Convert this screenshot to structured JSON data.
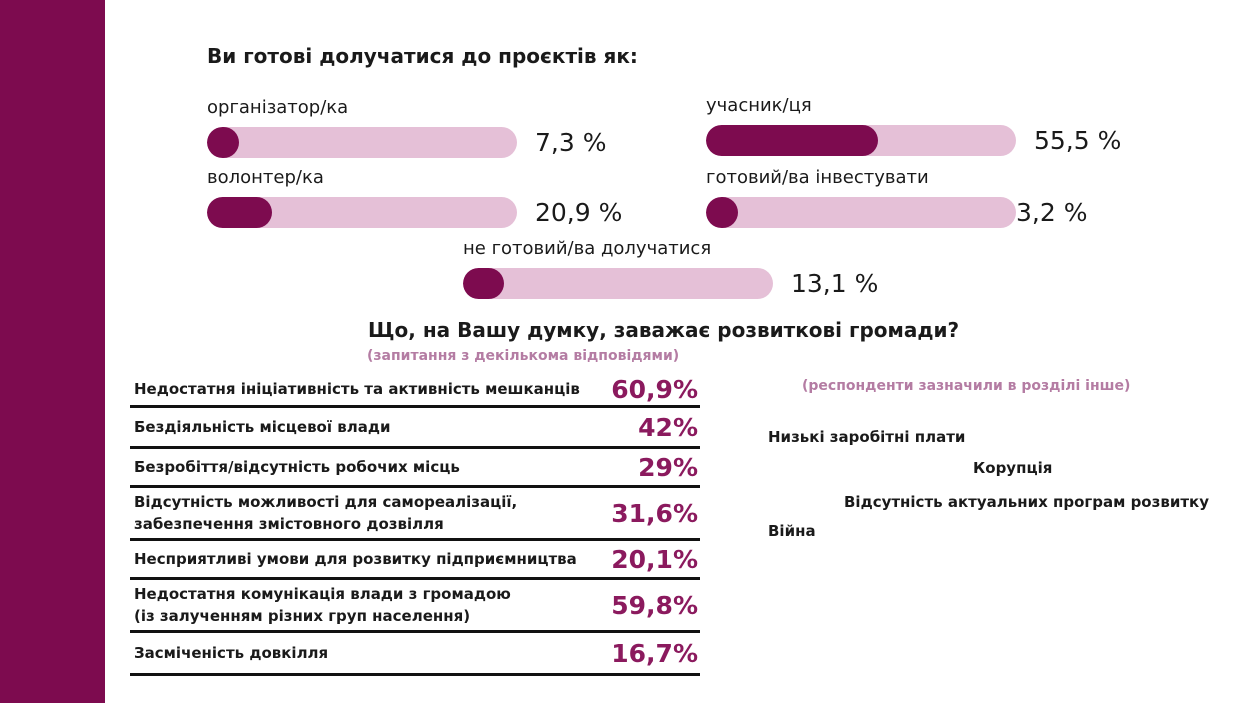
{
  "chart_data": [
    {
      "type": "bar",
      "title": "Ви готові долучатися до проєктів як:",
      "categories": [
        "організатор/ка",
        "учасник/ця",
        "волонтер/ка",
        "готовий/ва інвестувати",
        "не готовий/ва долучатися"
      ],
      "values": [
        7.3,
        55.5,
        20.9,
        3.2,
        13.1
      ],
      "value_labels": [
        "7,3 %",
        "55,5 %",
        "20,9 %",
        "3,2 %",
        "13,1 %"
      ],
      "ylim": [
        0,
        100
      ],
      "colors": {
        "fill": "#7d0b4f",
        "track": "#e5c0d7"
      }
    },
    {
      "type": "table",
      "title": "Що, на Вашу думку, заважає розвиткові громади?",
      "subtitle": "(запитання з декількома відповідями)",
      "rows": [
        {
          "label": "Недостатня ініціативність та активність мешканців",
          "value": "60,9%"
        },
        {
          "label": "Бездіяльність місцевої влади",
          "value": "42%"
        },
        {
          "label": "Безробіття/відсутність робочих місць",
          "value": "29%"
        },
        {
          "label": "Відсутність можливості для самореалізації,\nзабезпечення змістовного дозвілля",
          "value": "31,6%"
        },
        {
          "label": "Несприятливі умови для розвитку підприємництва",
          "value": "20,1%"
        },
        {
          "label": "Недостатня комунікація влади з громадою\n (із залученням різних груп населення)",
          "value": "59,8%"
        },
        {
          "label": "Засміченість довкілля",
          "value": "16,7%"
        }
      ]
    }
  ],
  "other_section": {
    "note": "(респонденти зазначили в розділі інше)",
    "items": [
      "Низькі заробітні плати",
      "Корупція",
      "Відсутність актуальних програм розвитку",
      "Війна"
    ]
  },
  "colors": {
    "accent": "#7d0b4f",
    "light": "#e5c0d7",
    "pct_text": "#8b1a5e",
    "note_text": "#b47ca3"
  }
}
